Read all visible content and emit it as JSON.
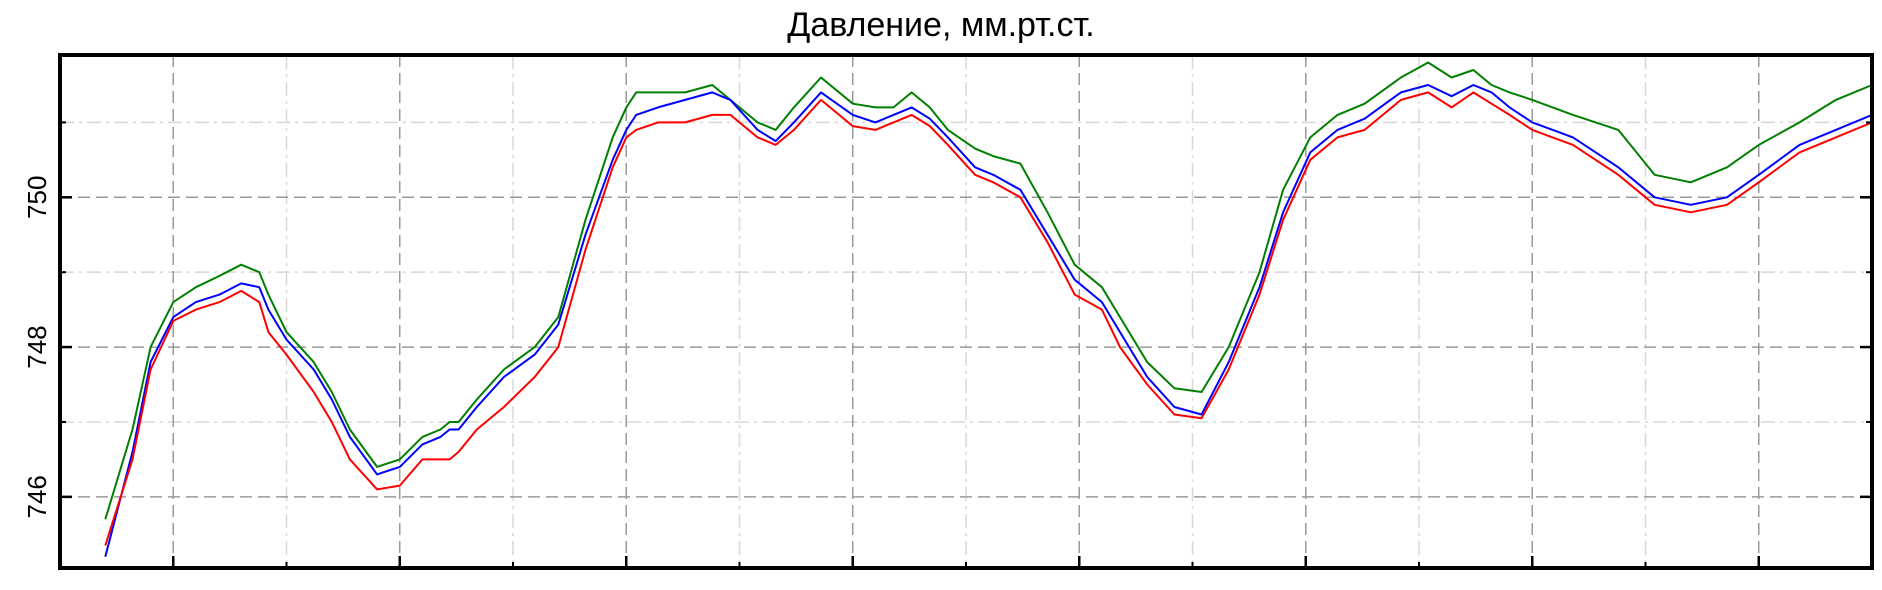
{
  "chart_data": {
    "type": "line",
    "title": "Давление, мм.рт.ст.",
    "xlabel": "",
    "ylabel": "",
    "xlim": [
      0,
      1000
    ],
    "ylim": [
      745.05,
      751.9
    ],
    "yticks": [
      746,
      748,
      750
    ],
    "yticks_minor": [
      747,
      749,
      751
    ],
    "xticks_major": [
      62.5,
      187.5,
      312.5,
      437.5,
      562.5,
      687.5,
      812.5,
      937.5
    ],
    "grid": true,
    "legend": "none",
    "colors": {
      "blue": "#0000ff",
      "red": "#ff0000",
      "green": "#007f00"
    },
    "series": [
      {
        "color": "#0000ff",
        "x": [
          25,
          40,
          50,
          62.5,
          75,
          88,
          100,
          110,
          115,
          125,
          140,
          150,
          160,
          175,
          187.5,
          200,
          210,
          215,
          220,
          230,
          245,
          262,
          275,
          290,
          305,
          312.5,
          318,
          330,
          345,
          360,
          370,
          385,
          395,
          405,
          420,
          437.5,
          450,
          460,
          470,
          480,
          490,
          505,
          515,
          530,
          545,
          560,
          575,
          585,
          600,
          615,
          630,
          645,
          662,
          675,
          690,
          705,
          720,
          740,
          755,
          768,
          780,
          790,
          800,
          812.5,
          835,
          860,
          880,
          900,
          920,
          937.5,
          960,
          980,
          1000
        ],
        "y": [
          745.2,
          746.6,
          747.8,
          748.4,
          748.6,
          748.7,
          748.85,
          748.8,
          748.5,
          748.1,
          747.7,
          747.3,
          746.8,
          746.3,
          746.4,
          746.7,
          746.8,
          746.9,
          746.9,
          747.2,
          747.6,
          747.9,
          748.3,
          749.5,
          750.5,
          750.9,
          751.1,
          751.2,
          751.3,
          751.4,
          751.3,
          750.9,
          750.75,
          751.0,
          751.4,
          751.1,
          751.0,
          751.1,
          751.2,
          751.05,
          750.8,
          750.4,
          750.3,
          750.1,
          749.5,
          748.9,
          748.6,
          748.2,
          747.6,
          747.2,
          747.1,
          747.8,
          748.8,
          749.8,
          750.6,
          750.9,
          751.05,
          751.4,
          751.5,
          751.35,
          751.5,
          751.4,
          751.2,
          751.0,
          750.8,
          750.4,
          750.0,
          749.9,
          750.0,
          750.3,
          750.7,
          750.9,
          751.1
        ]
      },
      {
        "color": "#ff0000",
        "x": [
          25,
          40,
          50,
          62.5,
          75,
          88,
          100,
          110,
          115,
          125,
          140,
          150,
          160,
          175,
          187.5,
          200,
          210,
          215,
          220,
          230,
          245,
          262,
          275,
          290,
          305,
          312.5,
          318,
          330,
          345,
          360,
          370,
          385,
          395,
          405,
          420,
          437.5,
          450,
          460,
          470,
          480,
          490,
          505,
          515,
          530,
          545,
          560,
          575,
          585,
          600,
          615,
          630,
          645,
          662,
          675,
          690,
          705,
          720,
          740,
          755,
          768,
          780,
          790,
          800,
          812.5,
          835,
          860,
          880,
          900,
          920,
          937.5,
          960,
          980,
          1000
        ],
        "y": [
          745.35,
          746.5,
          747.7,
          748.35,
          748.5,
          748.6,
          748.75,
          748.6,
          748.2,
          747.9,
          747.4,
          747.0,
          746.5,
          746.1,
          746.15,
          746.5,
          746.5,
          746.5,
          746.6,
          746.9,
          747.2,
          747.6,
          748.0,
          749.3,
          750.4,
          750.8,
          750.9,
          751.0,
          751.0,
          751.1,
          751.1,
          750.8,
          750.7,
          750.9,
          751.3,
          750.95,
          750.9,
          751.0,
          751.1,
          750.95,
          750.7,
          750.3,
          750.2,
          750.0,
          749.4,
          748.7,
          748.5,
          748.0,
          747.5,
          747.1,
          747.05,
          747.7,
          748.7,
          749.7,
          750.5,
          750.8,
          750.9,
          751.3,
          751.4,
          751.2,
          751.4,
          751.25,
          751.1,
          750.9,
          750.7,
          750.3,
          749.9,
          749.8,
          749.9,
          750.2,
          750.6,
          750.8,
          751.0
        ]
      },
      {
        "color": "#007f00",
        "x": [
          25,
          40,
          50,
          62.5,
          75,
          88,
          100,
          110,
          115,
          125,
          140,
          150,
          160,
          175,
          187.5,
          200,
          210,
          215,
          220,
          230,
          245,
          262,
          275,
          290,
          305,
          312.5,
          318,
          330,
          345,
          360,
          370,
          385,
          395,
          405,
          420,
          437.5,
          450,
          460,
          470,
          480,
          490,
          505,
          515,
          530,
          545,
          560,
          575,
          585,
          600,
          615,
          630,
          645,
          662,
          675,
          690,
          705,
          720,
          740,
          755,
          768,
          780,
          790,
          800,
          812.5,
          835,
          860,
          880,
          900,
          920,
          937.5,
          960,
          980,
          1000
        ],
        "y": [
          745.7,
          746.9,
          748.0,
          748.6,
          748.8,
          748.95,
          749.1,
          749.0,
          748.7,
          748.2,
          747.8,
          747.4,
          746.9,
          746.4,
          746.5,
          746.8,
          746.9,
          747.0,
          747.0,
          747.3,
          747.7,
          748.0,
          748.4,
          749.7,
          750.8,
          751.2,
          751.4,
          751.4,
          751.4,
          751.5,
          751.3,
          751.0,
          750.9,
          751.2,
          751.6,
          751.25,
          751.2,
          751.2,
          751.4,
          751.2,
          750.9,
          750.65,
          750.55,
          750.45,
          749.8,
          749.1,
          748.8,
          748.4,
          747.8,
          747.45,
          747.4,
          748.0,
          749.0,
          750.1,
          750.8,
          751.1,
          751.25,
          751.6,
          751.8,
          751.6,
          751.7,
          751.5,
          751.4,
          751.3,
          751.1,
          750.9,
          750.3,
          750.2,
          750.4,
          750.7,
          751.0,
          751.3,
          751.5
        ]
      }
    ]
  }
}
